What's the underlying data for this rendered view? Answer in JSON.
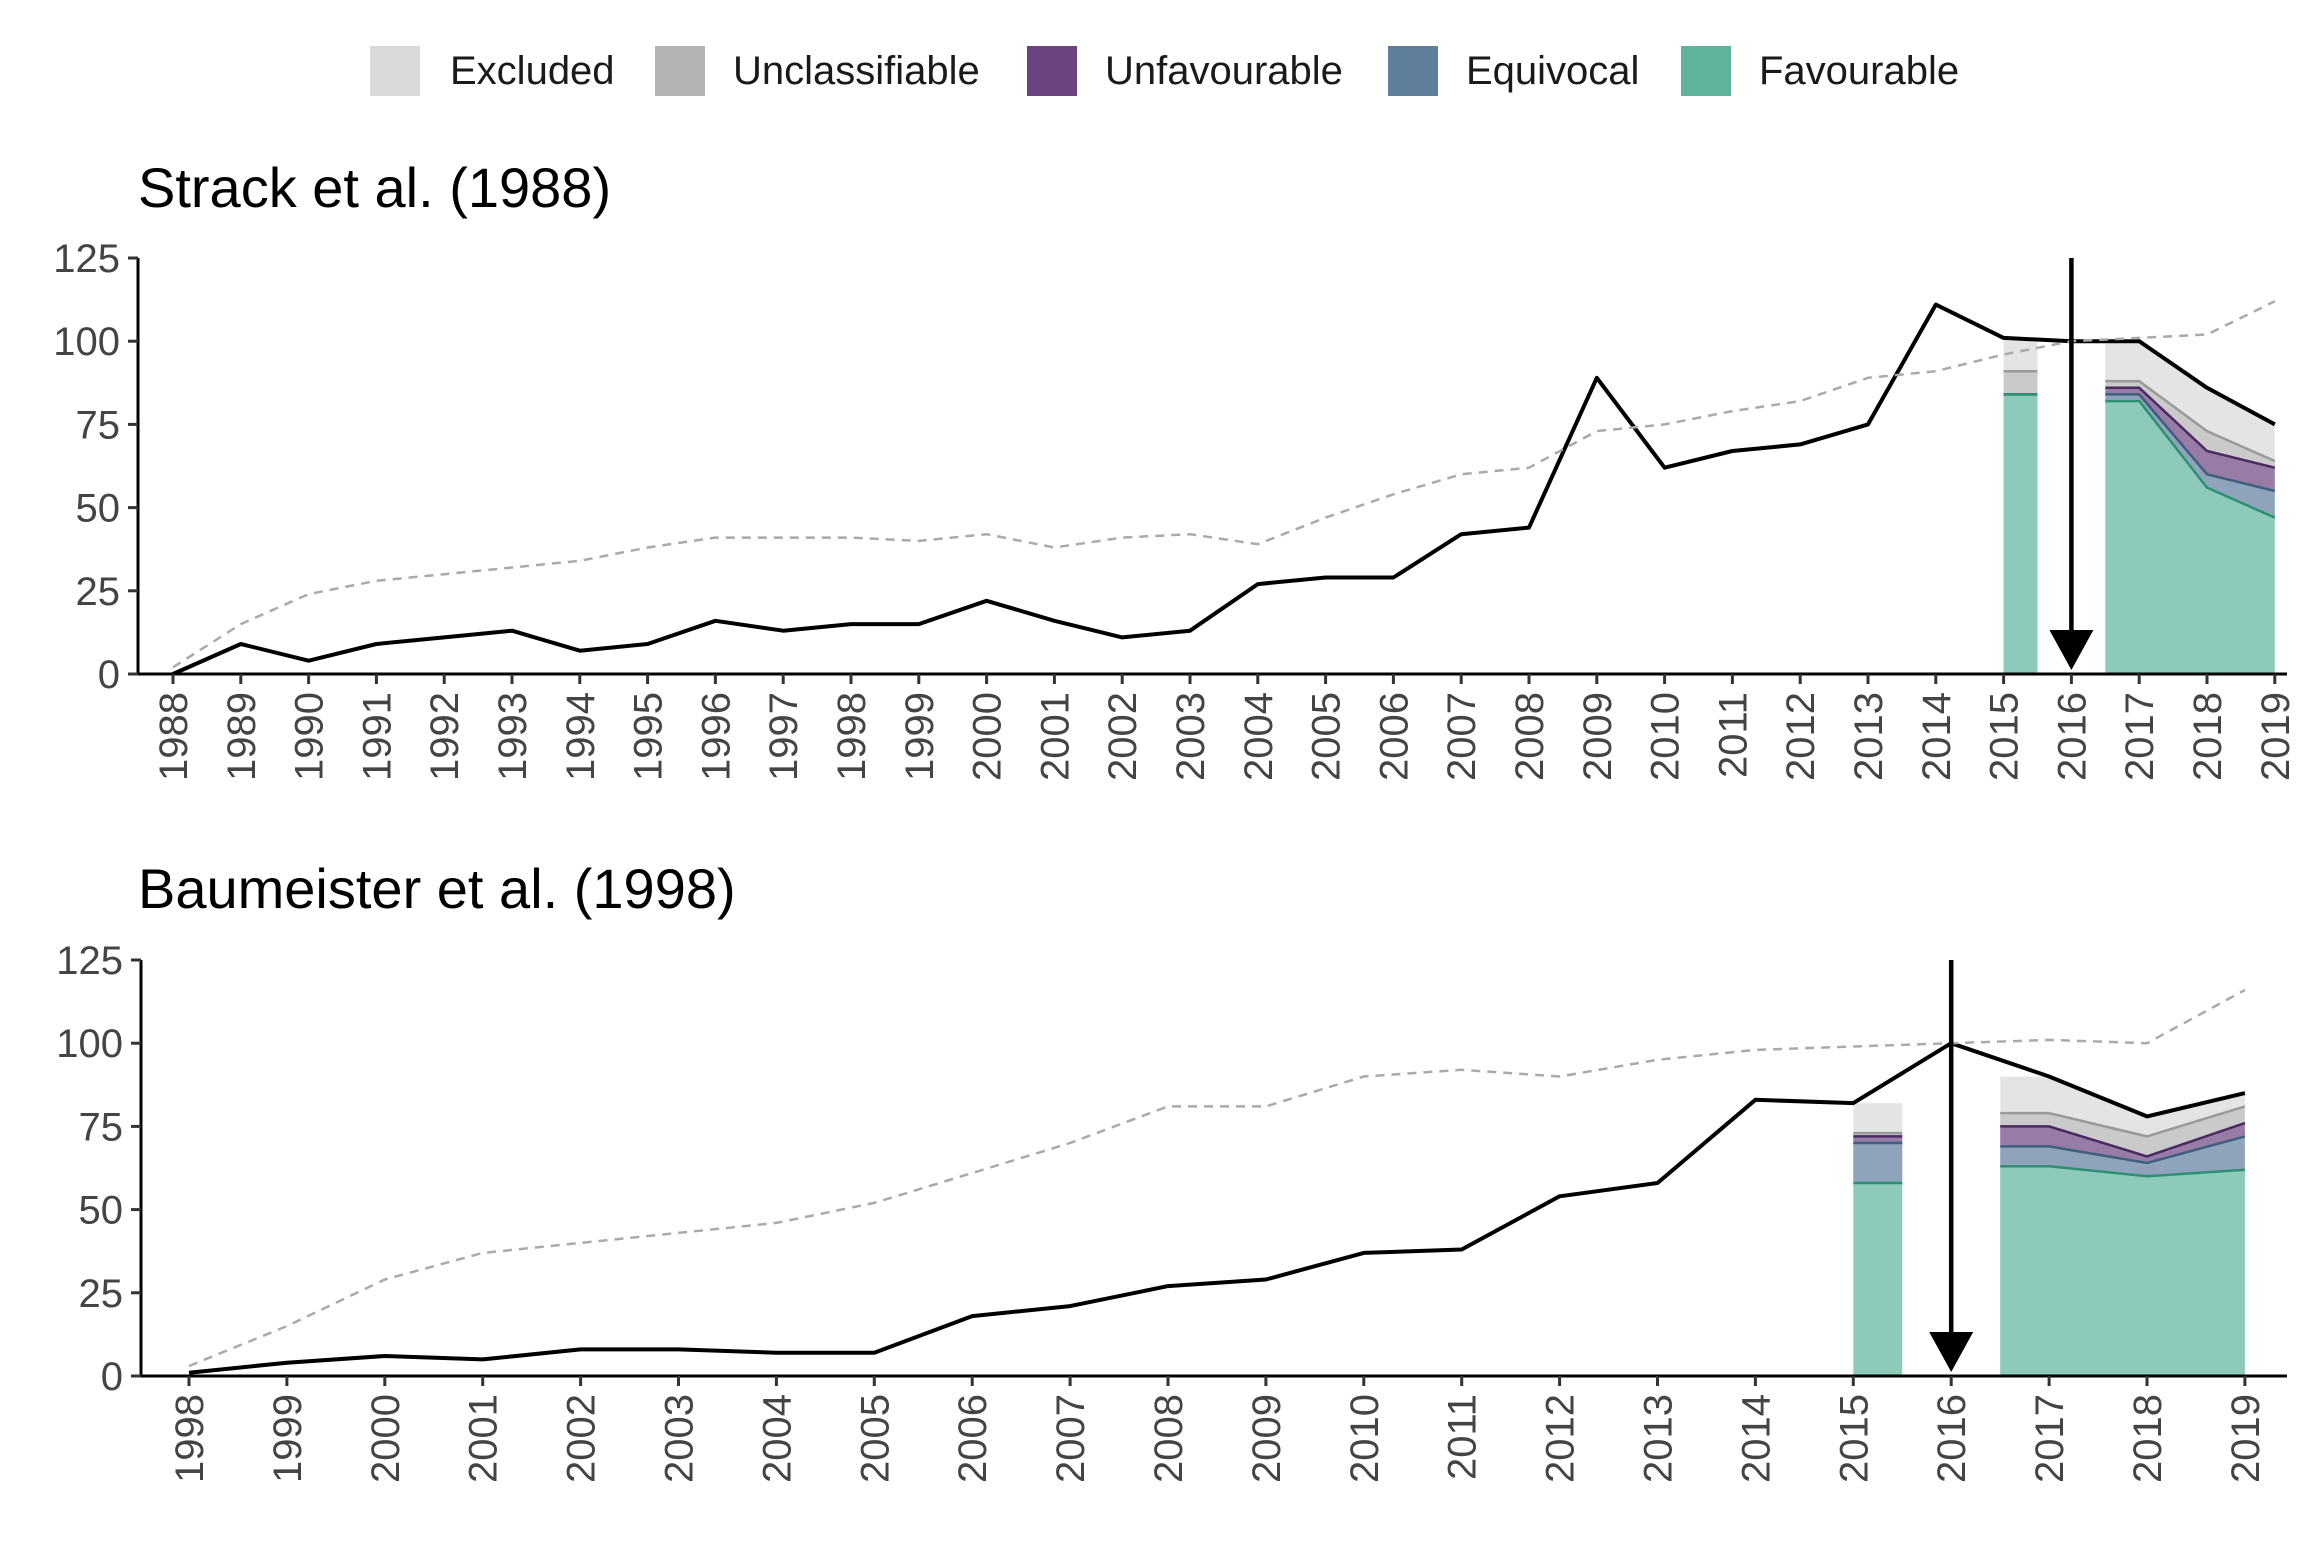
{
  "colors": {
    "excluded": "#d9d9d9",
    "unclassifiable": "#b3b3b3",
    "unfavourable": "#6a4480",
    "equivocal": "#5f7e9c",
    "favourable": "#5db39b",
    "citation_line": "#000000",
    "reference_line": "#aaaaaa"
  },
  "legend": [
    {
      "key": "excluded",
      "label": "Excluded"
    },
    {
      "key": "unclassifiable",
      "label": "Unclassifiable"
    },
    {
      "key": "unfavourable",
      "label": "Unfavourable"
    },
    {
      "key": "equivocal",
      "label": "Equivocal"
    },
    {
      "key": "favourable",
      "label": "Favourable"
    }
  ],
  "chart_data": [
    {
      "type": "line",
      "title": "Strack et al. (1988)",
      "xlabel": "",
      "ylabel": "",
      "ylim": [
        0,
        125
      ],
      "yticks": [
        0,
        25,
        50,
        75,
        100,
        125
      ],
      "x": [
        1988,
        1989,
        1990,
        1991,
        1992,
        1993,
        1994,
        1995,
        1996,
        1997,
        1998,
        1999,
        2000,
        2001,
        2002,
        2003,
        2004,
        2005,
        2006,
        2007,
        2008,
        2009,
        2010,
        2011,
        2012,
        2013,
        2014,
        2015,
        2016,
        2017,
        2018,
        2019
      ],
      "arrow_year": 2016,
      "series": [
        {
          "key": "citations",
          "style": "solid",
          "values": [
            0,
            9,
            4,
            9,
            11,
            13,
            7,
            9,
            16,
            13,
            15,
            15,
            22,
            16,
            11,
            13,
            27,
            29,
            29,
            42,
            44,
            89,
            62,
            67,
            69,
            75,
            111,
            101,
            100,
            100,
            86,
            75
          ]
        },
        {
          "key": "reference",
          "style": "dashed",
          "values": [
            2,
            15,
            24,
            28,
            30,
            32,
            34,
            38,
            41,
            41,
            41,
            40,
            42,
            38,
            41,
            42,
            39,
            47,
            54,
            60,
            62,
            73,
            75,
            79,
            82,
            89,
            91,
            96,
            100,
            101,
            102,
            112
          ]
        }
      ],
      "areas": [
        {
          "x": [
            2015,
            2015.5
          ],
          "favourable": [
            84,
            84
          ],
          "equivocal": [
            84,
            84
          ],
          "unfavourable": [
            84,
            84
          ],
          "unclassifiable": [
            91,
            91
          ],
          "total": [
            101,
            101
          ]
        },
        {
          "x": [
            2016.5,
            2017,
            2018,
            2019
          ],
          "favourable": [
            82,
            82,
            56,
            47
          ],
          "equivocal": [
            84,
            84,
            60,
            55
          ],
          "unfavourable": [
            86,
            86,
            67,
            62
          ],
          "unclassifiable": [
            88,
            88,
            73,
            64
          ],
          "total": [
            100,
            100,
            86,
            75
          ]
        }
      ]
    },
    {
      "type": "line",
      "title": "Baumeister et al. (1998)",
      "xlabel": "",
      "ylabel": "",
      "ylim": [
        0,
        125
      ],
      "yticks": [
        0,
        25,
        50,
        75,
        100,
        125
      ],
      "x": [
        1998,
        1999,
        2000,
        2001,
        2002,
        2003,
        2004,
        2005,
        2006,
        2007,
        2008,
        2009,
        2010,
        2011,
        2012,
        2013,
        2014,
        2015,
        2016,
        2017,
        2018,
        2019
      ],
      "arrow_year": 2016,
      "series": [
        {
          "key": "citations",
          "style": "solid",
          "values": [
            1,
            4,
            6,
            5,
            8,
            8,
            7,
            7,
            18,
            21,
            27,
            29,
            37,
            38,
            54,
            58,
            83,
            82,
            100,
            90,
            78,
            85
          ]
        },
        {
          "key": "reference",
          "style": "dashed",
          "values": [
            3,
            15,
            29,
            37,
            40,
            43,
            46,
            52,
            61,
            70,
            81,
            81,
            90,
            92,
            90,
            95,
            98,
            99,
            100,
            101,
            100,
            116
          ]
        }
      ],
      "areas": [
        {
          "x": [
            2015,
            2015.5
          ],
          "favourable": [
            58,
            58
          ],
          "equivocal": [
            70,
            70
          ],
          "unfavourable": [
            72,
            72
          ],
          "unclassifiable": [
            73,
            73
          ],
          "total": [
            82,
            82
          ]
        },
        {
          "x": [
            2016.5,
            2017,
            2018,
            2019
          ],
          "favourable": [
            63,
            63,
            60,
            62
          ],
          "equivocal": [
            69,
            69,
            64,
            72
          ],
          "unfavourable": [
            75,
            75,
            66,
            76
          ],
          "unclassifiable": [
            79,
            79,
            72,
            81
          ],
          "total": [
            90,
            90,
            78,
            85
          ]
        }
      ]
    }
  ]
}
